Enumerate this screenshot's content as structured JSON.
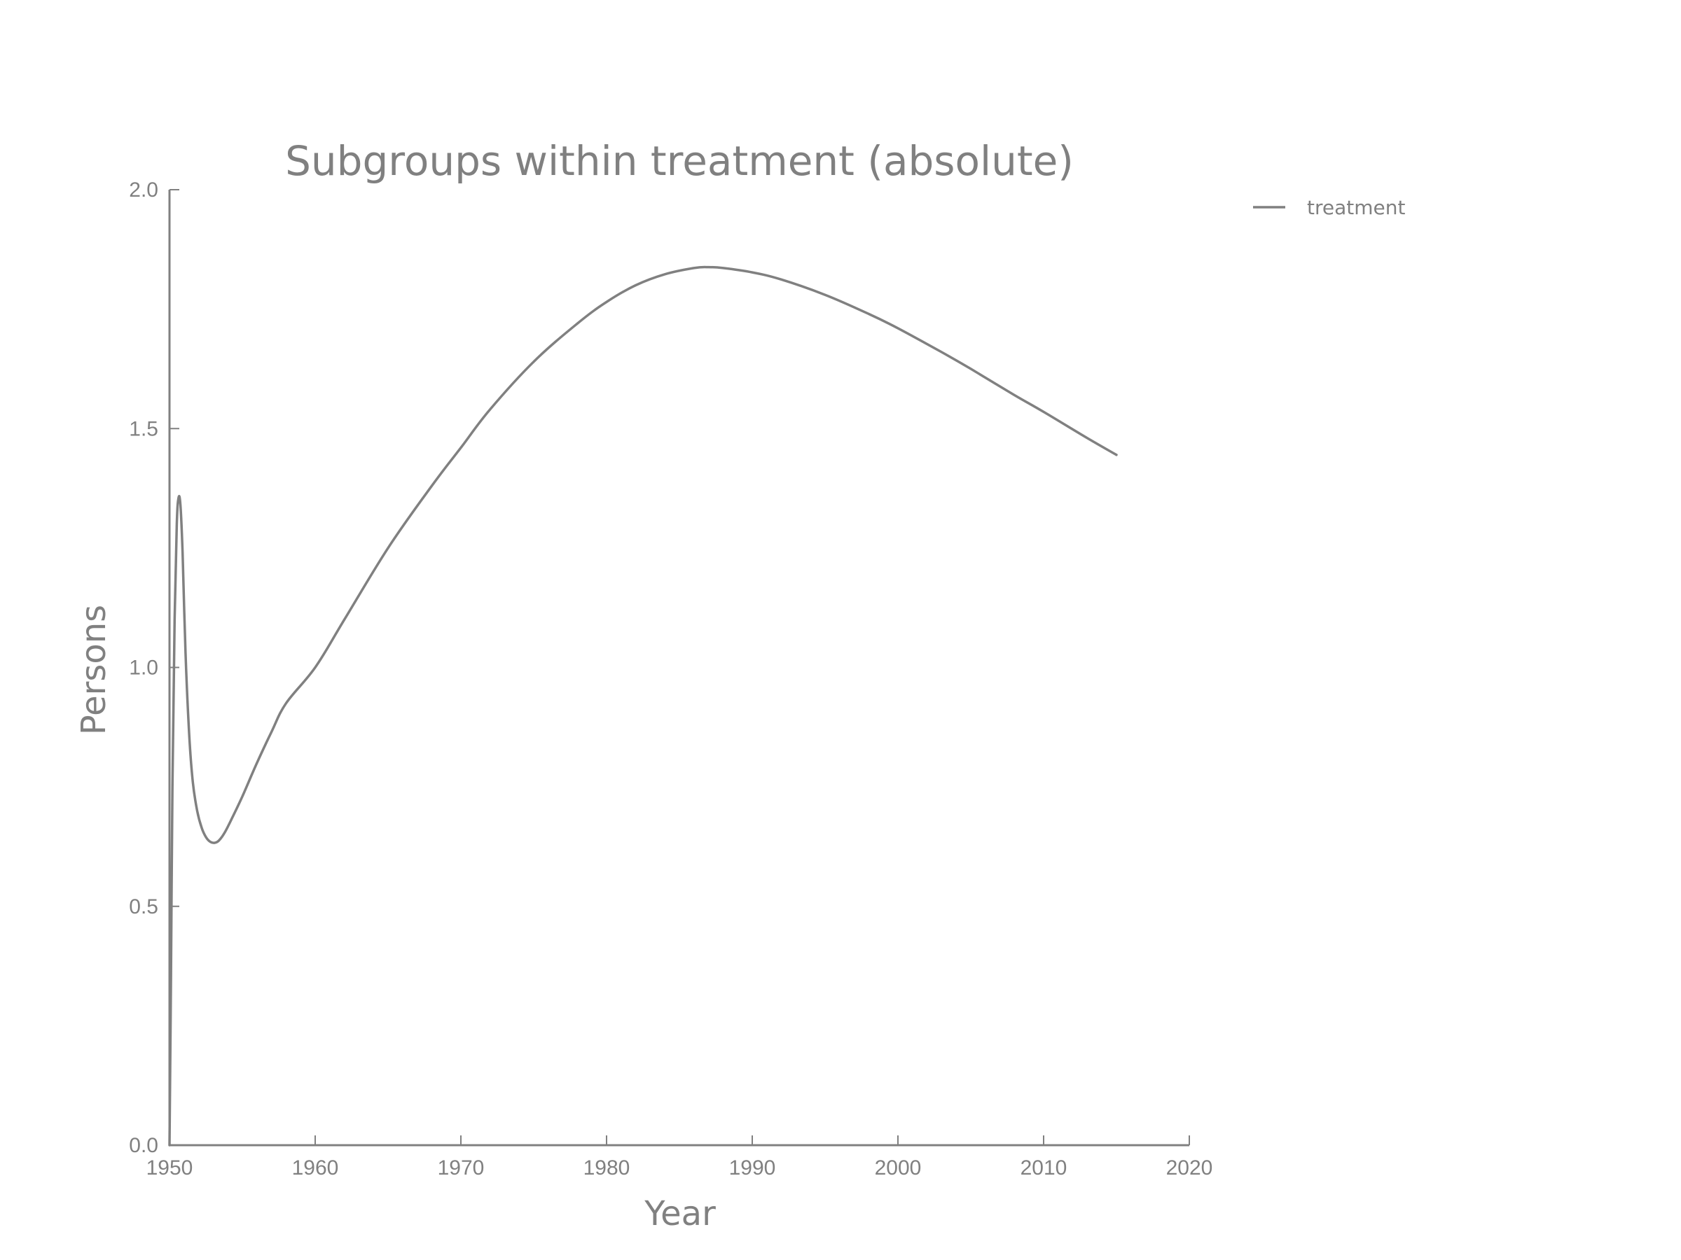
{
  "chart_data": {
    "type": "line",
    "title": "Subgroups within treatment (absolute)",
    "xlabel": "Year",
    "ylabel": "Persons",
    "xlim": [
      1950,
      2020
    ],
    "ylim": [
      0.0,
      2.0
    ],
    "xticks": [
      "1950",
      "1960",
      "1970",
      "1980",
      "1990",
      "2000",
      "2010",
      "2020"
    ],
    "yticks": [
      "0.0",
      "0.5",
      "1.0",
      "1.5",
      "2.0"
    ],
    "grid": false,
    "legend_position": "upper right, outside plot",
    "line_color": "#808080",
    "series": [
      {
        "name": "treatment",
        "x": [
          1950.0,
          1950.1,
          1950.2,
          1950.35,
          1950.5,
          1950.62,
          1950.75,
          1950.9,
          1951.1,
          1951.35,
          1951.6,
          1951.9,
          1952.2,
          1952.5,
          1952.8,
          1953.1,
          1953.4,
          1953.8,
          1954.3,
          1955,
          1956,
          1957,
          1958,
          1960,
          1962,
          1965,
          1968,
          1970,
          1972,
          1975,
          1978,
          1980,
          1982,
          1984,
          1986,
          1987,
          1988,
          1990,
          1992,
          1995,
          1998,
          2000,
          2003,
          2005,
          2008,
          2010,
          2013,
          2015
        ],
        "y": [
          0.0,
          0.35,
          0.75,
          1.1,
          1.3,
          1.355,
          1.34,
          1.24,
          1.03,
          0.86,
          0.76,
          0.7,
          0.665,
          0.645,
          0.635,
          0.633,
          0.638,
          0.655,
          0.685,
          0.73,
          0.8,
          0.865,
          0.925,
          1.0,
          1.1,
          1.25,
          1.38,
          1.46,
          1.54,
          1.64,
          1.72,
          1.765,
          1.8,
          1.823,
          1.836,
          1.838,
          1.836,
          1.827,
          1.812,
          1.78,
          1.74,
          1.71,
          1.66,
          1.625,
          1.57,
          1.535,
          1.48,
          1.445
        ]
      }
    ]
  }
}
